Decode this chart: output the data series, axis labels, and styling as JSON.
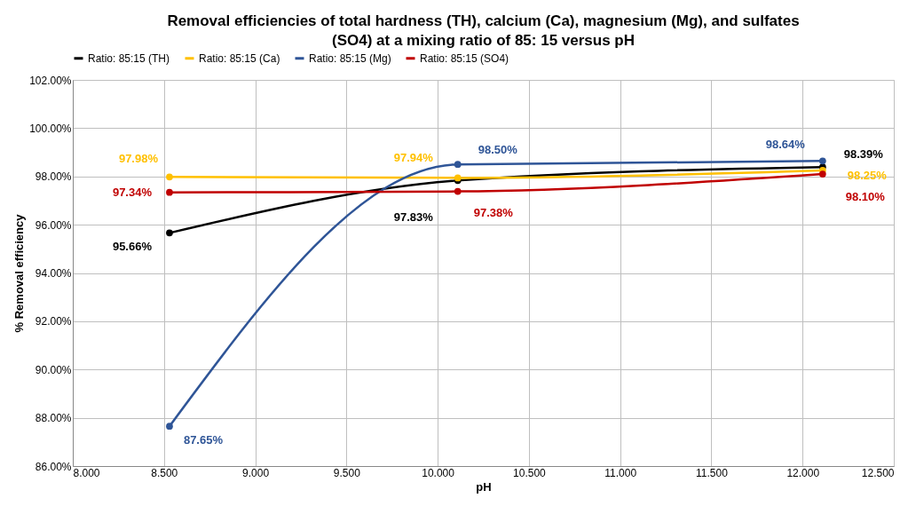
{
  "chart_data": {
    "type": "line",
    "title": "Removal efficiencies of total hardness (TH), calcium (Ca), magnesium (Mg),  and sulfates (SO4) at a  mixing ratio of 85: 15 versus  pH",
    "xlabel": "pH",
    "ylabel": "%  Removal efficiency",
    "x": [
      8.53,
      10.11,
      12.11
    ],
    "series": [
      {
        "name": "Ratio: 85:15 (TH)",
        "color": "#000000",
        "values": [
          95.66,
          97.83,
          98.39
        ],
        "value_labels": [
          "95.66%",
          "97.83%",
          "98.39%"
        ]
      },
      {
        "name": "Ratio: 85:15 (Ca)",
        "color": "#ffc000",
        "values": [
          97.98,
          97.94,
          98.25
        ],
        "value_labels": [
          "97.98%",
          "97.94%",
          "98.25%"
        ]
      },
      {
        "name": "Ratio: 85:15 (Mg)",
        "color": "#2f5597",
        "values": [
          87.65,
          98.5,
          98.64
        ],
        "value_labels": [
          "87.65%",
          "98.50%",
          "98.64%"
        ]
      },
      {
        "name": "Ratio: 85:15 (SO4)",
        "color": "#c00000",
        "values": [
          97.34,
          97.38,
          98.1
        ],
        "value_labels": [
          "97.34%",
          "97.38%",
          "98.10%"
        ]
      }
    ],
    "xlim": [
      8.0,
      12.5
    ],
    "xticks": [
      {
        "value": 8.0,
        "label": "8.000"
      },
      {
        "value": 8.5,
        "label": "8.500"
      },
      {
        "value": 9.0,
        "label": "9.000"
      },
      {
        "value": 9.5,
        "label": "9.500"
      },
      {
        "value": 10.0,
        "label": "10.000"
      },
      {
        "value": 10.5,
        "label": "10.500"
      },
      {
        "value": 11.0,
        "label": "11.000"
      },
      {
        "value": 11.5,
        "label": "11.500"
      },
      {
        "value": 12.0,
        "label": "12.000"
      },
      {
        "value": 12.5,
        "label": "12.500"
      }
    ],
    "ylim": [
      86,
      102
    ],
    "yticks": [
      {
        "value": 86,
        "label": "86.00%"
      },
      {
        "value": 88,
        "label": "88.00%"
      },
      {
        "value": 90,
        "label": "90.00%"
      },
      {
        "value": 92,
        "label": "92.00%"
      },
      {
        "value": 94,
        "label": "94.00%"
      },
      {
        "value": 96,
        "label": "96.00%"
      },
      {
        "value": 98,
        "label": "98.00%"
      },
      {
        "value": 100,
        "label": "100.00%"
      },
      {
        "value": 102,
        "label": "102.00%"
      }
    ],
    "grid": true,
    "legend": "top",
    "marker": "circle",
    "line_style": "solid"
  }
}
